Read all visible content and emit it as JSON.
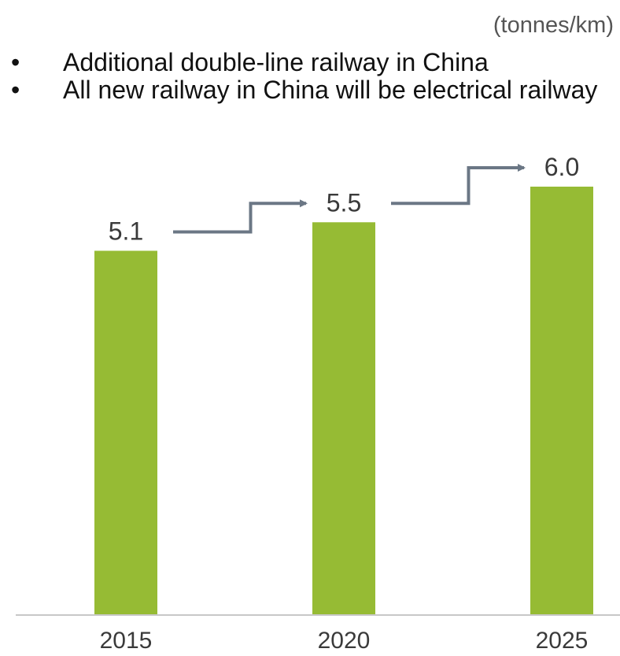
{
  "unit_label": "(tonnes/km)",
  "bullets": [
    "Additional double-line railway in China",
    "All new railway in China will be electrical railway"
  ],
  "bullet_glyph": "•",
  "colors": {
    "bar": "#96bb34",
    "arrow": "#6b7785",
    "axis": "#c8c8c8"
  },
  "chart_data": {
    "type": "bar",
    "categories": [
      "2015",
      "2020",
      "2025"
    ],
    "values": [
      5.1,
      5.5,
      6.0
    ],
    "value_labels": [
      "5.1",
      "5.5",
      "6.0"
    ],
    "ylim": [
      0,
      6.0
    ],
    "grid": false,
    "legend": "none"
  }
}
